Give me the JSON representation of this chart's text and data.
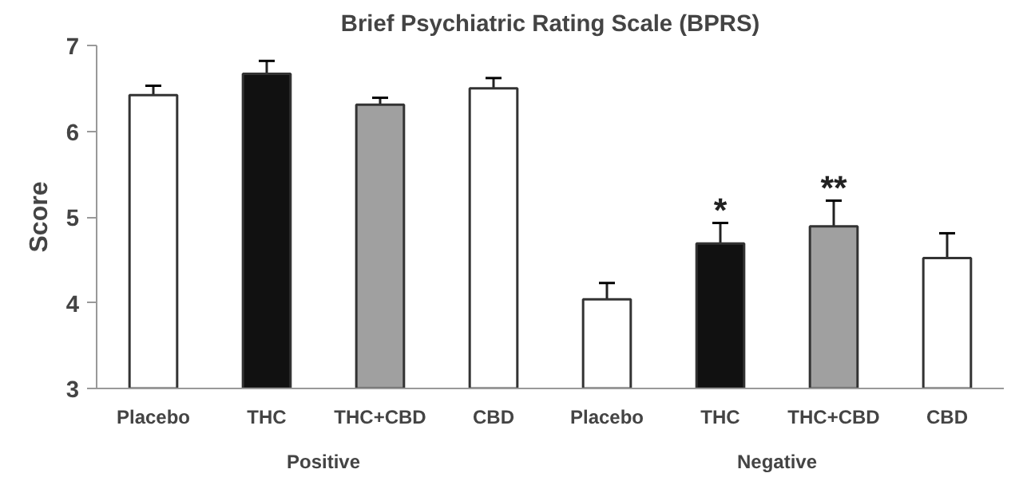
{
  "chart_data": {
    "type": "bar",
    "title": "Brief Psychiatric Rating Scale (BPRS)",
    "ylabel": "Score",
    "categories": [
      "Placebo",
      "THC",
      "THC+CBD",
      "CBD",
      "Placebo",
      "THC",
      "THC+CBD",
      "CBD"
    ],
    "values": [
      6.42,
      6.67,
      6.31,
      6.5,
      4.04,
      4.69,
      4.89,
      4.52
    ],
    "errors": [
      0.11,
      0.15,
      0.08,
      0.12,
      0.19,
      0.24,
      0.3,
      0.29
    ],
    "colors": [
      "#ffffff",
      "#111111",
      "#a0a0a0",
      "#ffffff",
      "#ffffff",
      "#111111",
      "#a0a0a0",
      "#ffffff"
    ],
    "ylim": [
      3,
      7
    ],
    "yticks": [
      3,
      4,
      5,
      6,
      7
    ],
    "grid": false,
    "value_labels": [
      null,
      null,
      null,
      null,
      null,
      "*",
      "**",
      null
    ],
    "annotations": [
      "Positive",
      "Negative"
    ]
  }
}
